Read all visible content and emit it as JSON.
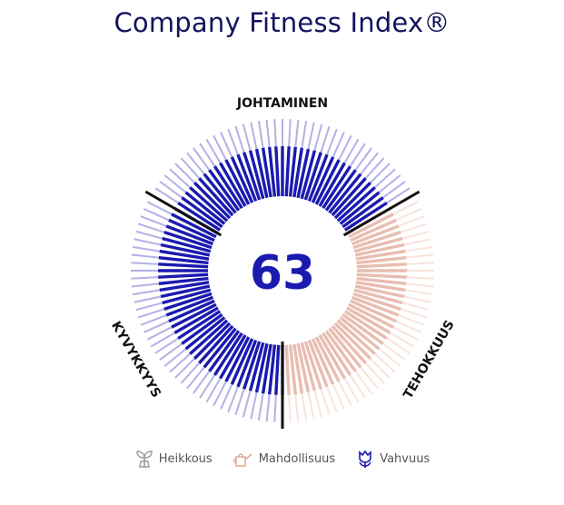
{
  "title": "Company Fitness Index®",
  "chart_data": {
    "type": "radial-bar",
    "center_value": "63",
    "sections": [
      {
        "name": "JOHTAMINEN",
        "level": "Vahvuus"
      },
      {
        "name": "TEHOKKUUS",
        "level": "Mahdollisuus"
      },
      {
        "name": "KYVYKKYYS",
        "level": "Vahvuus"
      }
    ],
    "colors": {
      "Vahvuus": "#1a1ab0",
      "Vahvuus_light": "#b3b1e6",
      "Mahdollisuus": "#e8bdb0",
      "Mahdollisuus_light": "#f7e4de",
      "Heikkous": "#9a9a9a",
      "divider": "#111111"
    }
  },
  "legend": [
    {
      "label": "Heikkous",
      "icon": "sprout-icon",
      "color": "#9a9a9a"
    },
    {
      "label": "Mahdollisuus",
      "icon": "watering-can-icon",
      "color": "#e0a893"
    },
    {
      "label": "Vahvuus",
      "icon": "tulip-icon",
      "color": "#1a1ab0"
    }
  ]
}
